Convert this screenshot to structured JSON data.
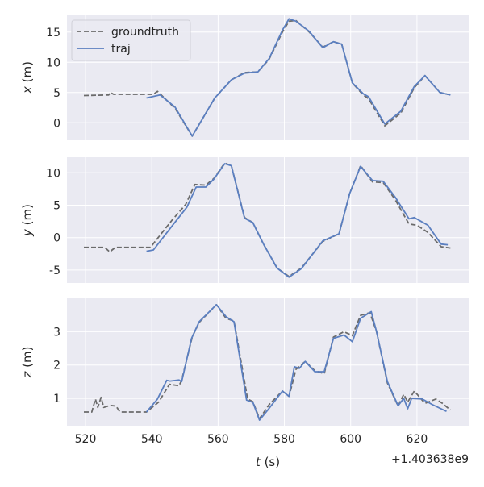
{
  "chart_data": [
    {
      "type": "line",
      "ylabel_var": "x",
      "ylabel_unit": " (m)",
      "ylim": [
        -2.9,
        17.9
      ],
      "xlim": [
        514.4,
        635.6
      ],
      "yticks": [
        0,
        5,
        10,
        15
      ],
      "grid": true,
      "legend": {
        "placement": "top-left",
        "entries": [
          "groundtruth",
          "traj"
        ]
      },
      "series": [
        {
          "name": "groundtruth",
          "style": "dashed",
          "x": [
            519.5,
            527,
            527.5,
            528.5,
            540.5,
            541.7,
            547,
            552.2,
            559,
            564,
            568,
            572,
            575.4,
            579.4,
            581.4,
            583.5,
            587.5,
            591.6,
            594.8,
            597.3,
            600.5,
            603.8,
            605.4,
            610.3,
            615.1,
            619.2,
            622.4,
            626.9,
            630.1
          ],
          "y": [
            4.5,
            4.6,
            5.0,
            4.7,
            4.7,
            5.2,
            2.4,
            -2.2,
            4.1,
            7.1,
            8.3,
            8.4,
            10.5,
            15.0,
            16.8,
            16.9,
            15.0,
            12.5,
            13.4,
            13.0,
            6.6,
            4.6,
            4.0,
            -0.5,
            1.6,
            5.8,
            7.8,
            5.0,
            4.6
          ]
        },
        {
          "name": "traj",
          "style": "solid",
          "x": [
            538.4,
            542.5,
            547,
            552.2,
            559,
            564,
            568,
            572,
            575.4,
            579.4,
            581.4,
            583.5,
            587.5,
            591.6,
            594.8,
            597.3,
            600.5,
            603.8,
            605.4,
            610.3,
            615.1,
            619.2,
            622.4,
            626.9,
            630.1
          ],
          "y": [
            4.1,
            4.6,
            2.6,
            -2.2,
            4.1,
            7.1,
            8.2,
            8.4,
            10.6,
            15.3,
            17.2,
            16.8,
            15.1,
            12.4,
            13.4,
            13.0,
            6.6,
            4.8,
            4.3,
            -0.2,
            1.9,
            6.0,
            7.8,
            5.0,
            4.6
          ]
        }
      ]
    },
    {
      "type": "line",
      "ylabel_var": "y",
      "ylabel_unit": " (m)",
      "ylim": [
        -7.0,
        12.4
      ],
      "xlim": [
        514.4,
        635.6
      ],
      "yticks": [
        -5,
        0,
        5,
        10
      ],
      "grid": true,
      "series": [
        {
          "name": "groundtruth",
          "style": "dashed",
          "x": [
            519.5,
            525.8,
            527.3,
            529,
            539.6,
            546.1,
            550.2,
            553,
            556.3,
            558.7,
            562,
            564,
            568,
            570.5,
            573.7,
            577.8,
            581.4,
            585.1,
            591.6,
            596.5,
            599.7,
            603,
            606.6,
            609.8,
            613.5,
            617.6,
            620,
            623.3,
            627.3,
            630.1
          ],
          "y": [
            -1.5,
            -1.5,
            -2.2,
            -1.5,
            -1.5,
            2.7,
            5.1,
            8.2,
            8.1,
            9.1,
            11.5,
            11.1,
            3.1,
            2.3,
            -1.0,
            -4.7,
            -6.0,
            -4.7,
            -0.6,
            0.6,
            6.8,
            11.1,
            8.6,
            8.5,
            5.8,
            2.1,
            1.9,
            0.8,
            -1.4,
            -1.6
          ]
        },
        {
          "name": "traj",
          "style": "solid",
          "x": [
            538.4,
            540.5,
            546.9,
            550.6,
            553.4,
            556.3,
            558.7,
            562,
            564,
            568,
            570.5,
            573.7,
            577.8,
            581.4,
            585.1,
            591.6,
            596.5,
            599.7,
            603,
            606.6,
            609.8,
            613.5,
            617.6,
            619.2,
            623.3,
            627.3,
            629.3
          ],
          "y": [
            -2.1,
            -1.9,
            2.3,
            4.7,
            7.8,
            7.8,
            9.0,
            11.4,
            11.1,
            3.0,
            2.3,
            -1.0,
            -4.7,
            -6.1,
            -4.8,
            -0.5,
            0.6,
            6.8,
            11.0,
            8.8,
            8.7,
            6.2,
            2.9,
            3.1,
            1.9,
            -1.0,
            -1.1
          ]
        }
      ]
    },
    {
      "type": "line",
      "ylabel_var": "z",
      "ylabel_unit": " (m)",
      "ylim": [
        0.18,
        4.0
      ],
      "xlim": [
        514.4,
        635.6
      ],
      "yticks": [
        1,
        2,
        3
      ],
      "xticks": [
        520,
        540,
        560,
        580,
        600,
        620
      ],
      "xlabel_var": "t",
      "xlabel_unit": " (s)",
      "x_offset_label": "+1.403638e9",
      "grid": true,
      "series": [
        {
          "name": "groundtruth",
          "style": "dashed",
          "x": [
            519.5,
            521.9,
            523,
            523.7,
            524.7,
            525.5,
            527.5,
            529.2,
            530.4,
            538.4,
            542.1,
            545.3,
            548.2,
            549,
            552.2,
            554.3,
            559.5,
            562.4,
            564.8,
            568.9,
            570.5,
            572.5,
            575.4,
            579.4,
            581.4,
            583.5,
            586.3,
            589.2,
            592,
            594.8,
            598,
            600.5,
            603,
            605.8,
            607.8,
            611.1,
            614.3,
            616,
            617.2,
            619.2,
            622.4,
            625.7,
            627.7,
            630.1
          ],
          "y": [
            0.59,
            0.59,
            0.98,
            0.73,
            1.03,
            0.73,
            0.79,
            0.77,
            0.59,
            0.59,
            0.89,
            1.42,
            1.38,
            1.54,
            2.84,
            3.28,
            3.81,
            3.4,
            3.32,
            0.98,
            0.9,
            0.39,
            0.81,
            1.22,
            1.06,
            1.87,
            2.11,
            1.83,
            1.74,
            2.84,
            3.0,
            2.88,
            3.49,
            3.57,
            3.0,
            1.46,
            0.77,
            1.12,
            0.89,
            1.22,
            0.85,
            0.98,
            0.85,
            0.65
          ]
        },
        {
          "name": "traj",
          "style": "solid",
          "x": [
            538.4,
            541.7,
            544.5,
            545.5,
            548.2,
            549,
            552,
            554.3,
            559.5,
            562.4,
            564.8,
            568.6,
            570.5,
            572.5,
            575.4,
            579.4,
            581.4,
            583,
            584.5,
            586.3,
            589.2,
            592,
            594.8,
            598,
            600.5,
            603,
            606.2,
            607.8,
            611.1,
            614.3,
            616,
            617.2,
            618.4,
            621.6,
            624.5,
            628.9
          ],
          "y": [
            0.59,
            0.98,
            1.54,
            1.52,
            1.55,
            1.5,
            2.8,
            3.3,
            3.81,
            3.45,
            3.3,
            0.95,
            0.88,
            0.35,
            0.7,
            1.22,
            1.06,
            1.95,
            1.9,
            2.11,
            1.8,
            1.8,
            2.8,
            2.9,
            2.7,
            3.4,
            3.6,
            3.0,
            1.5,
            0.78,
            1.0,
            0.69,
            1.0,
            0.98,
            0.82,
            0.61
          ]
        }
      ]
    }
  ],
  "colors": {
    "background": "#eaeaf2",
    "groundtruth": "#6b6b6b",
    "traj": "#5b7fc0",
    "grid": "#ffffff"
  }
}
